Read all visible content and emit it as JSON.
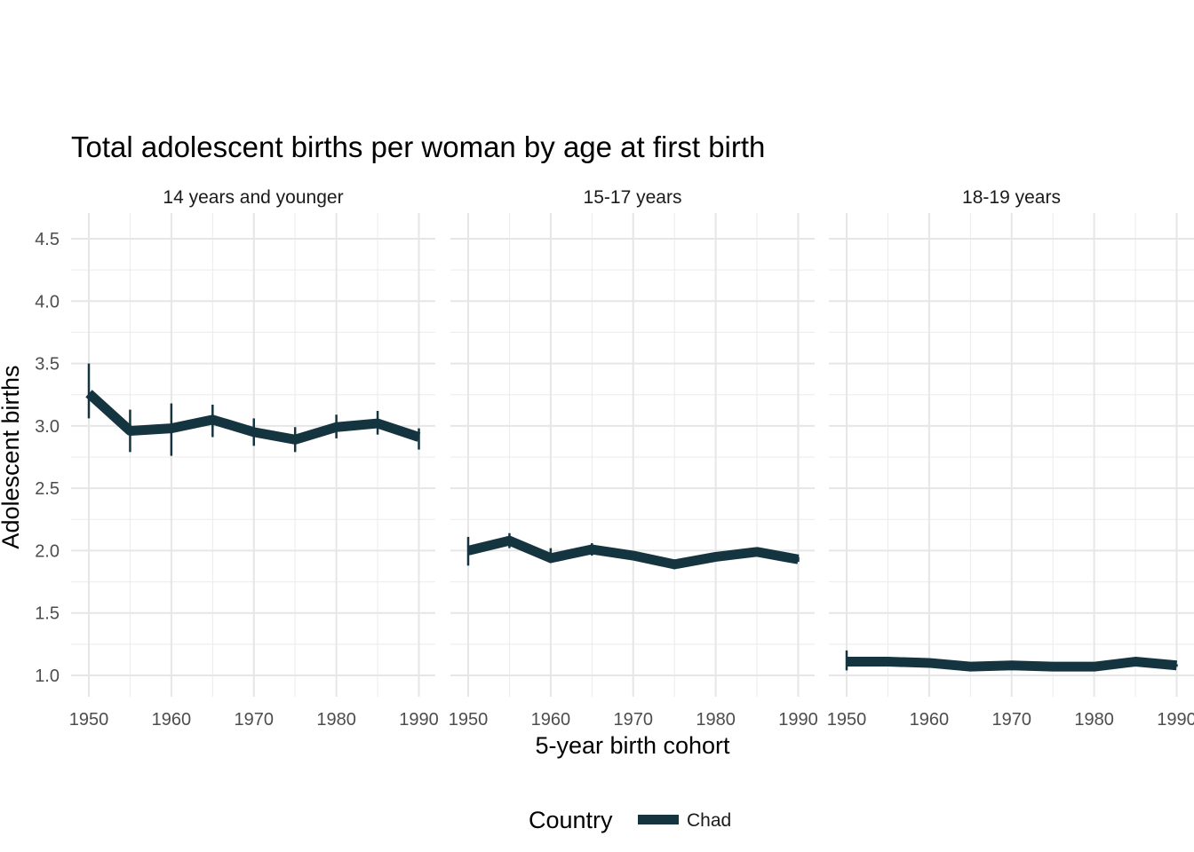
{
  "chart_data": {
    "type": "line",
    "title": "Total adolescent births per woman by age at first birth",
    "xlabel": "5-year birth cohort",
    "ylabel": "Adolescent births",
    "ylim": [
      0.83,
      4.66
    ],
    "yticks": [
      "1.0",
      "1.5",
      "2.0",
      "2.5",
      "3.0",
      "3.5",
      "4.0",
      "4.5"
    ],
    "xticks": [
      "1950",
      "1960",
      "1970",
      "1980",
      "1990"
    ],
    "x": [
      1950,
      1955,
      1960,
      1965,
      1970,
      1975,
      1980,
      1985,
      1990
    ],
    "grid": true,
    "legend": {
      "title": "Country",
      "position": "bottom",
      "entries": [
        "Chad"
      ]
    },
    "color": "#143540",
    "panels": [
      {
        "name": "14 years and younger",
        "series": [
          {
            "name": "Chad",
            "values": [
              3.26,
              2.96,
              2.98,
              3.05,
              2.95,
              2.89,
              2.99,
              3.02,
              2.91
            ],
            "lower": [
              3.06,
              2.79,
              2.76,
              2.91,
              2.84,
              2.79,
              2.9,
              2.93,
              2.81
            ],
            "upper": [
              3.5,
              3.13,
              3.18,
              3.17,
              3.06,
              2.99,
              3.09,
              3.12,
              2.98
            ]
          }
        ]
      },
      {
        "name": "15-17 years",
        "series": [
          {
            "name": "Chad",
            "values": [
              2.0,
              2.08,
              1.94,
              2.01,
              1.96,
              1.89,
              1.95,
              1.99,
              1.93
            ],
            "lower": [
              1.88,
              2.02,
              1.9,
              1.96,
              1.93,
              1.85,
              1.93,
              1.97,
              1.91
            ],
            "upper": [
              2.11,
              2.14,
              2.02,
              2.06,
              1.99,
              1.93,
              1.97,
              2.01,
              1.95
            ]
          }
        ]
      },
      {
        "name": "18-19 years",
        "series": [
          {
            "name": "Chad",
            "values": [
              1.11,
              1.11,
              1.1,
              1.07,
              1.08,
              1.07,
              1.07,
              1.11,
              1.08
            ],
            "lower": [
              1.04,
              1.08,
              1.08,
              1.06,
              1.07,
              1.06,
              1.06,
              1.1,
              1.07
            ],
            "upper": [
              1.2,
              1.14,
              1.12,
              1.08,
              1.09,
              1.08,
              1.08,
              1.12,
              1.09
            ]
          }
        ]
      }
    ]
  }
}
